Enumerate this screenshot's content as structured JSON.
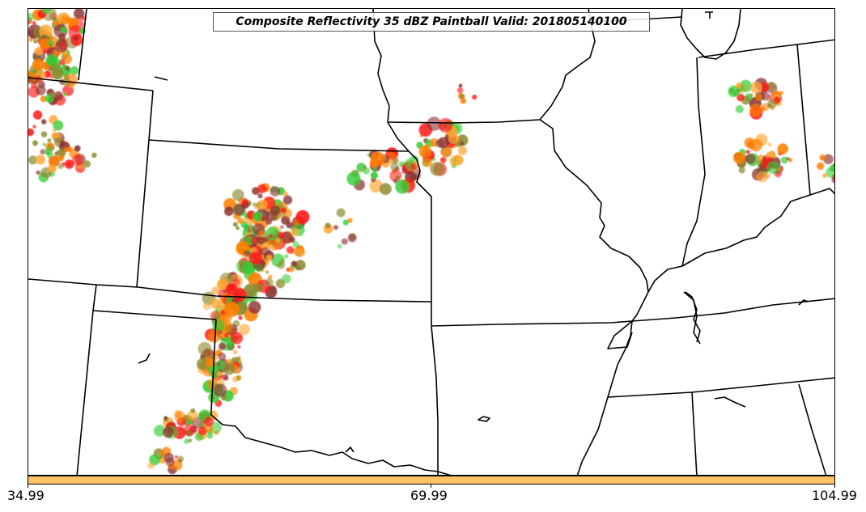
{
  "title": "Composite Reflectivity 35 dBZ Paintball Valid: 201805140100",
  "colorbar": {
    "color": "#FFC266",
    "tick_labels": [
      "34.99",
      "69.99",
      "104.99"
    ]
  },
  "colors": {
    "state_lines": "#000000",
    "paint_red": "#FF1A1A",
    "paint_orange": "#FF7F00",
    "paint_light_orange": "#FFA733",
    "paint_green": "#33CC33",
    "paint_olive": "#8C8C33",
    "paint_maroon": "#8C3333"
  },
  "map": {
    "region": "Central United States",
    "boundaries": "state-lines",
    "storm_clusters": [
      "northwest-corner",
      "colorado-kansas-line",
      "eastern-kansas",
      "kansas-city",
      "indiana",
      "ohio-edge"
    ]
  }
}
